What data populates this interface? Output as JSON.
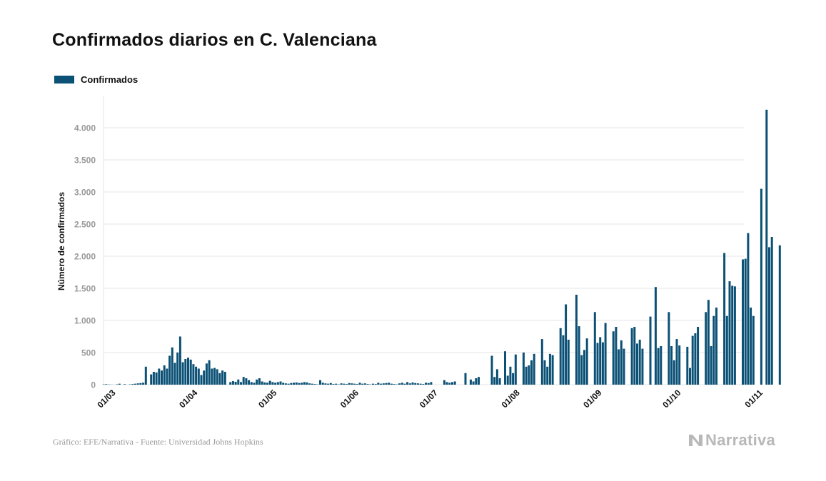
{
  "title": "Confirmados diarios en C. Valenciana",
  "legend": {
    "label": "Confirmados",
    "color": "#0b5075"
  },
  "source": "Gráfico: EFE/Narrativa - Fuente: Universidad Johns Hopkins",
  "brand": {
    "name": "Narrativa",
    "icon": "narrativa-logo-icon"
  },
  "colors": {
    "bar": "#0b5075",
    "grid": "#e6e6e6",
    "tick": "#999999",
    "xtick": "#111111"
  },
  "chart_data": {
    "type": "bar",
    "title": "Confirmados diarios en C. Valenciana",
    "xlabel": "",
    "ylabel": "Número de confirmados",
    "ylim": [
      0,
      4500
    ],
    "yticks": [
      0,
      500,
      1000,
      1500,
      2000,
      2500,
      3000,
      3500,
      4000
    ],
    "ytick_labels": [
      "0",
      "500",
      "1.000",
      "1.500",
      "2.000",
      "2.500",
      "3.000",
      "3.500",
      "4.000"
    ],
    "xticks": [
      {
        "label": "01/03",
        "day": 0
      },
      {
        "label": "01/04",
        "day": 31
      },
      {
        "label": "01/05",
        "day": 61
      },
      {
        "label": "01/06",
        "day": 92
      },
      {
        "label": "01/07",
        "day": 122
      },
      {
        "label": "01/08",
        "day": 153
      },
      {
        "label": "01/09",
        "day": 184
      },
      {
        "label": "01/10",
        "day": 214
      },
      {
        "label": "01/11",
        "day": 245
      }
    ],
    "x_start": "2020-02-19",
    "x_end": "2020-11-21",
    "grid": true,
    "legend_position": "top-left",
    "series": [
      {
        "name": "Confirmados",
        "color": "#0b5075",
        "values": [
          0,
          0,
          0,
          0,
          0,
          0,
          0,
          0,
          0,
          5,
          8,
          3,
          2,
          0,
          5,
          15,
          0,
          8,
          0,
          5,
          10,
          15,
          20,
          25,
          30,
          280,
          0,
          160,
          200,
          190,
          250,
          220,
          300,
          250,
          450,
          580,
          340,
          500,
          750,
          350,
          400,
          420,
          390,
          320,
          280,
          250,
          150,
          220,
          330,
          380,
          250,
          260,
          240,
          180,
          220,
          200,
          0,
          40,
          55,
          45,
          80,
          40,
          120,
          100,
          70,
          40,
          30,
          80,
          100,
          50,
          35,
          30,
          60,
          40,
          30,
          40,
          50,
          30,
          20,
          15,
          25,
          30,
          35,
          25,
          30,
          40,
          35,
          20,
          15,
          10,
          5,
          70,
          30,
          20,
          15,
          25,
          10,
          15,
          5,
          20,
          15,
          10,
          25,
          20,
          15,
          10,
          30,
          15,
          20,
          10,
          5,
          15,
          10,
          30,
          15,
          20,
          25,
          30,
          15,
          10,
          5,
          20,
          30,
          15,
          40,
          20,
          35,
          25,
          20,
          15,
          10,
          30,
          25,
          40,
          0,
          0,
          0,
          0,
          70,
          40,
          30,
          40,
          50,
          0,
          0,
          0,
          180,
          0,
          80,
          50,
          100,
          120,
          0,
          0,
          0,
          0,
          450,
          120,
          240,
          100,
          0,
          520,
          140,
          280,
          180,
          470,
          0,
          0,
          500,
          280,
          300,
          380,
          480,
          0,
          0,
          710,
          380,
          280,
          480,
          460,
          0,
          0,
          880,
          770,
          1250,
          700,
          0,
          0,
          1400,
          910,
          460,
          540,
          720,
          0,
          0,
          1130,
          650,
          740,
          660,
          960,
          0,
          0,
          830,
          900,
          550,
          690,
          560,
          0,
          0,
          880,
          900,
          640,
          700,
          560,
          0,
          0,
          1060,
          0,
          1520,
          570,
          600,
          0,
          0,
          1130,
          600,
          380,
          710,
          610,
          0,
          0,
          590,
          260,
          760,
          800,
          900,
          0,
          0,
          1130,
          1320,
          600,
          1070,
          1200,
          0,
          0,
          2050,
          1070,
          1610,
          1540,
          1530,
          0,
          0,
          1950,
          1960,
          2360,
          1200,
          1070,
          0,
          0,
          3050,
          0,
          4280,
          2140,
          2300,
          0,
          0,
          2170
        ]
      }
    ]
  }
}
